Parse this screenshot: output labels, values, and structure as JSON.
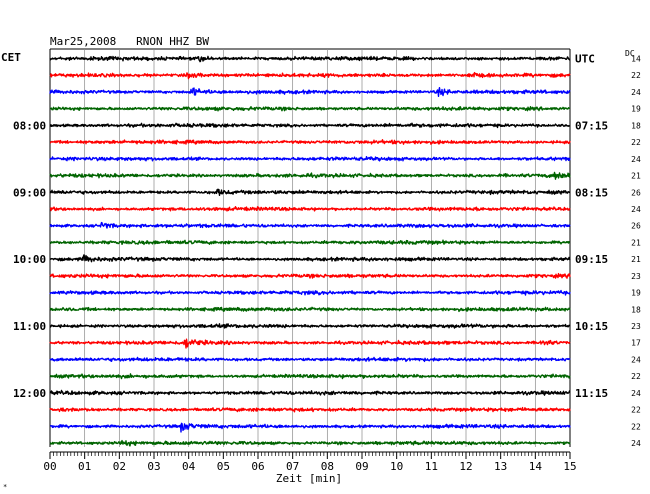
{
  "chart_data": {
    "type": "line",
    "title": "Mar25,2008   RNON HHZ BW",
    "left_axis_label": "CET",
    "right_axis_label": "UTC",
    "dc_header": "DC",
    "xlabel": "Zeit [min]",
    "xlim": [
      0,
      15
    ],
    "x_tick_labels": [
      "00",
      "01",
      "02",
      "03",
      "04",
      "05",
      "06",
      "07",
      "08",
      "09",
      "10",
      "11",
      "12",
      "13",
      "14",
      "15"
    ],
    "left_time_labels": [
      {
        "row": 4,
        "label": "08:00"
      },
      {
        "row": 8,
        "label": "09:00"
      },
      {
        "row": 12,
        "label": "10:00"
      },
      {
        "row": 16,
        "label": "11:00"
      },
      {
        "row": 20,
        "label": "12:00"
      }
    ],
    "right_time_labels": [
      {
        "row": 0,
        "label": "UTC"
      },
      {
        "row": 4,
        "label": "07:15"
      },
      {
        "row": 8,
        "label": "08:15"
      },
      {
        "row": 12,
        "label": "09:15"
      },
      {
        "row": 16,
        "label": "10:15"
      },
      {
        "row": 20,
        "label": "11:15"
      }
    ],
    "dc_offsets": [
      "14",
      "22",
      "24",
      "19",
      "18",
      "22",
      "24",
      "21",
      "26",
      "24",
      "26",
      "21",
      "21",
      "23",
      "19",
      "18",
      "23",
      "17",
      "24",
      "22",
      "24",
      "22",
      "22",
      "24"
    ],
    "row_colors": [
      "#000000",
      "#ff0000",
      "#0000ff",
      "#006400"
    ],
    "events": [
      {
        "row": 0,
        "minute": 4.3,
        "amp": 1.8
      },
      {
        "row": 1,
        "minute": 4.0,
        "amp": 2.2
      },
      {
        "row": 1,
        "minute": 12.1,
        "amp": 2.2
      },
      {
        "row": 2,
        "minute": 4.1,
        "amp": 3.2
      },
      {
        "row": 2,
        "minute": 11.2,
        "amp": 2.5
      },
      {
        "row": 7,
        "minute": 14.6,
        "amp": 3.0
      },
      {
        "row": 8,
        "minute": 4.8,
        "amp": 2.0
      },
      {
        "row": 10,
        "minute": 1.5,
        "amp": 2.6
      },
      {
        "row": 12,
        "minute": 1.0,
        "amp": 2.5
      },
      {
        "row": 17,
        "minute": 3.9,
        "amp": 3.6
      },
      {
        "row": 17,
        "minute": 14.2,
        "amp": 2.6
      },
      {
        "row": 22,
        "minute": 3.8,
        "amp": 3.4
      },
      {
        "row": 23,
        "minute": 2.1,
        "amp": 2.0
      }
    ]
  },
  "footer_mark": "*"
}
